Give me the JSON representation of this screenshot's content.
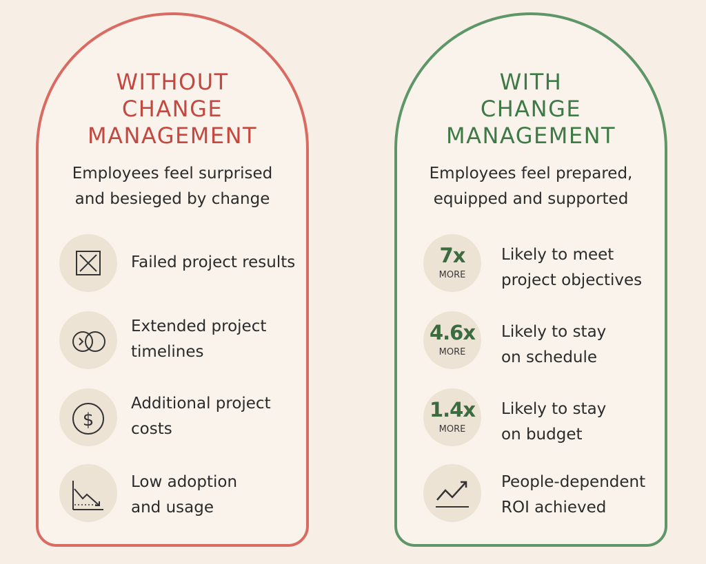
{
  "without": {
    "title_lines": [
      "WITHOUT",
      "CHANGE",
      "MANAGEMENT"
    ],
    "subtitle_lines": [
      "Employees feel surprised",
      "and besieged by change"
    ],
    "items": [
      {
        "icon": "x-box-icon",
        "lines": [
          "Failed project results"
        ]
      },
      {
        "icon": "overlapping-circles-icon",
        "lines": [
          "Extended project",
          "timelines"
        ]
      },
      {
        "icon": "dollar-icon",
        "lines": [
          "Additional project",
          "costs"
        ]
      },
      {
        "icon": "declining-chart-icon",
        "lines": [
          "Low adoption",
          "and usage"
        ]
      }
    ],
    "accent_color": "#d96b62"
  },
  "with": {
    "title_lines": [
      "WITH",
      "CHANGE",
      "MANAGEMENT"
    ],
    "subtitle_lines": [
      "Employees feel prepared,",
      "equipped and supported"
    ],
    "items": [
      {
        "stat": "7x",
        "more": "MORE",
        "lines": [
          "Likely to meet",
          "project objectives"
        ]
      },
      {
        "stat": "4.6x",
        "more": "MORE",
        "lines": [
          "Likely to stay",
          "on schedule"
        ]
      },
      {
        "stat": "1.4x",
        "more": "MORE",
        "lines": [
          "Likely to stay",
          "on budget"
        ]
      },
      {
        "icon": "rising-chart-icon",
        "lines": [
          "People-dependent",
          "ROI achieved"
        ]
      }
    ],
    "accent_color": "#5f9668"
  }
}
